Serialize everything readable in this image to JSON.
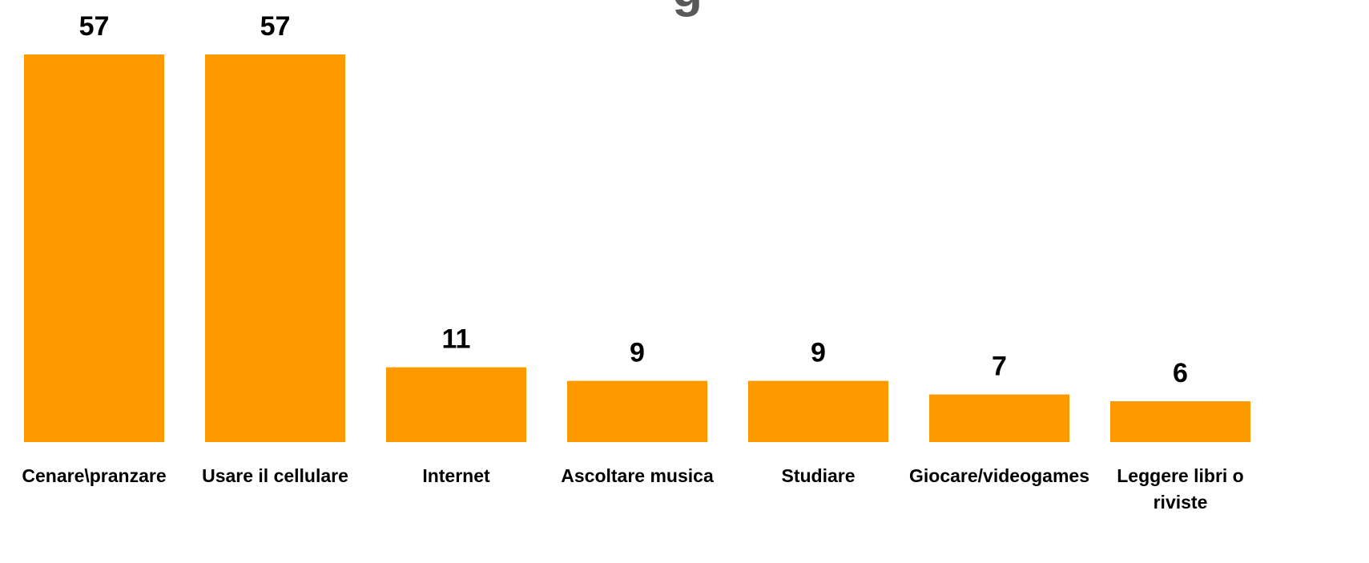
{
  "chart_data": {
    "type": "bar",
    "title_visible_fragment": "g",
    "categories": [
      [
        "Cenare\\pranzare"
      ],
      [
        "Usare il cellulare"
      ],
      [
        "Internet"
      ],
      [
        "Ascoltare musica"
      ],
      [
        "Studiare"
      ],
      [
        "Giocare/videogames"
      ],
      [
        "Leggere libri o",
        "riviste"
      ]
    ],
    "values": [
      57,
      57,
      11,
      9,
      9,
      7,
      6
    ],
    "value_labels": [
      "57",
      "57",
      "11",
      "9",
      "9",
      "7",
      "6"
    ],
    "bar_color": "#FF9900",
    "ylim": [
      0,
      57
    ],
    "grid": false,
    "legend": "none"
  }
}
